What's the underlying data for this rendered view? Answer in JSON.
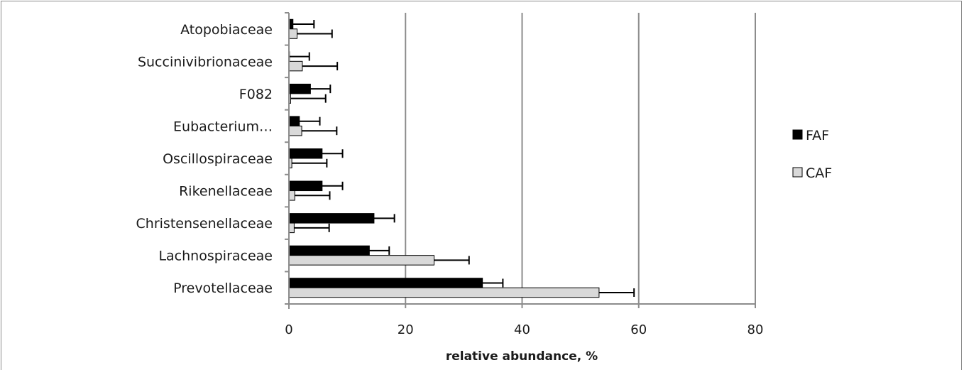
{
  "chart_data": {
    "type": "bar",
    "orientation": "horizontal",
    "categories": [
      "Atopobiaceae",
      "Succinivibrionaceae",
      "F082",
      "Eubacterium…",
      "Oscillospiraceae",
      "Rikenellaceae",
      "Christensenellaceae",
      "Lachnospiraceae",
      "Prevotellaceae"
    ],
    "series": [
      {
        "name": "FAF",
        "color": "#000000",
        "values": [
          0.7,
          0.1,
          3.7,
          1.8,
          5.7,
          5.7,
          14.6,
          13.8,
          33.2
        ],
        "errors": [
          3.6,
          3.4,
          3.4,
          3.5,
          3.5,
          3.5,
          3.5,
          3.4,
          3.5
        ]
      },
      {
        "name": "CAF",
        "color": "#d9d9d9",
        "values": [
          1.4,
          2.3,
          0.3,
          2.2,
          0.5,
          1.0,
          0.9,
          24.9,
          53.2
        ],
        "errors": [
          6.0,
          6.0,
          6.0,
          6.0,
          6.0,
          6.0,
          6.0,
          6.0,
          6.0
        ]
      }
    ],
    "xlabel": "relative abundance, %",
    "ylabel": "",
    "title": "",
    "xlim": [
      0,
      80
    ],
    "xticks": [
      0,
      20,
      40,
      60,
      80
    ],
    "grid": true,
    "legend_position": "right"
  }
}
